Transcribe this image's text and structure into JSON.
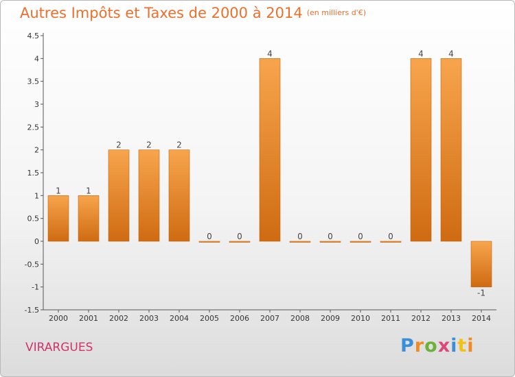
{
  "title": "Autres Impôts et Taxes de 2000 à 2014",
  "unit": "(en milliers d'€)",
  "commune": "VIRARGUES",
  "logo": "Proxiti",
  "colors": {
    "bar_light": "#f7a54d",
    "bar_dark": "#cf6b12",
    "title": "#ee6e2c",
    "commune": "#d0336a"
  },
  "chart_data": {
    "type": "bar",
    "title": "Autres Impôts et Taxes de 2000 à 2014",
    "categories": [
      "2000",
      "2001",
      "2002",
      "2003",
      "2004",
      "2005",
      "2006",
      "2007",
      "2008",
      "2009",
      "2010",
      "2011",
      "2012",
      "2013",
      "2014"
    ],
    "values": [
      1,
      1,
      2,
      2,
      2,
      0,
      0,
      4,
      0,
      0,
      0,
      0,
      4,
      4,
      -1
    ],
    "data_labels": [
      "1",
      "1",
      "2",
      "2",
      "2",
      "0",
      "0",
      "4",
      "0",
      "0",
      "0",
      "0",
      "4",
      "4",
      "-1"
    ],
    "ylim": [
      -1.5,
      4.5
    ],
    "yticks": [
      -1.5,
      -1,
      -0.5,
      0,
      0.5,
      1,
      1.5,
      2,
      2.5,
      3,
      3.5,
      4,
      4.5
    ],
    "ytick_labels": [
      "-1.5",
      "-1",
      "-0.5",
      "0",
      "0.5",
      "1",
      "1.5",
      "2",
      "2.5",
      "3",
      "3.5",
      "4",
      "4.5"
    ],
    "grid": false,
    "legend": "none"
  }
}
